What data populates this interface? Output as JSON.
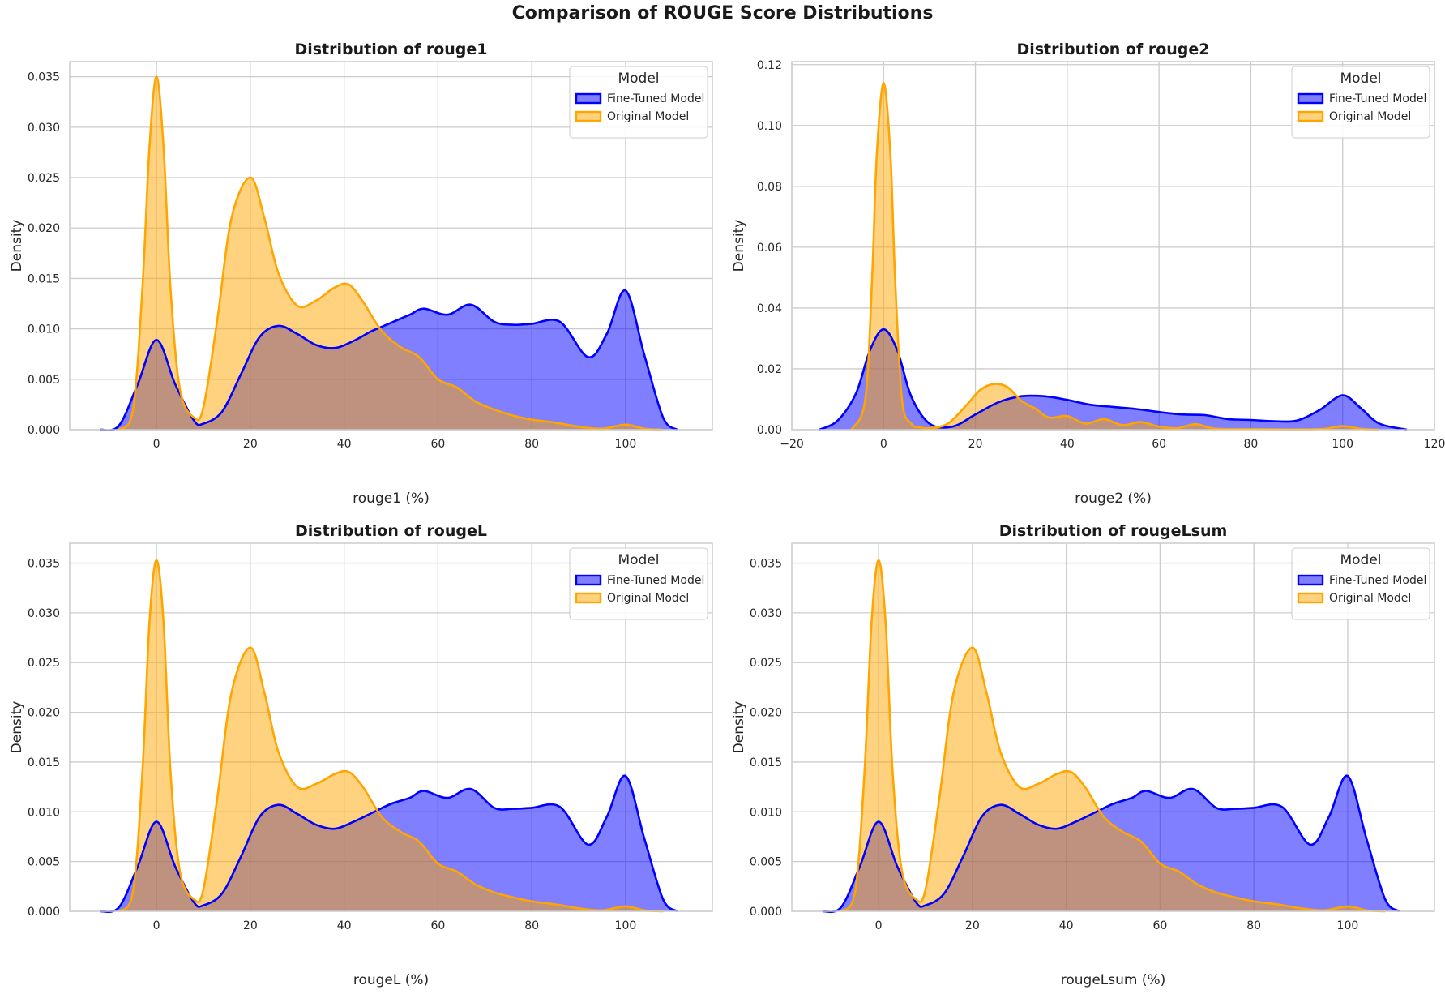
{
  "figure": {
    "title": "Comparison of ROUGE Score Distributions"
  },
  "colors": {
    "fine_tuned": "#0000ff",
    "original": "#ffa500",
    "overlap": "#bd938a"
  },
  "legend": {
    "title": "Model",
    "entries": [
      "Fine-Tuned Model",
      "Original Model"
    ]
  },
  "chart_data": [
    {
      "type": "area",
      "title": "Distribution of rouge1",
      "xlabel": "rouge1 (%)",
      "ylabel": "Density",
      "xlim": [
        -18.5,
        118.5
      ],
      "ylim": [
        0,
        0.0365
      ],
      "xticks": [
        0,
        20,
        40,
        60,
        80,
        100
      ],
      "yticks": [
        0.0,
        0.005,
        0.01,
        0.015,
        0.02,
        0.025,
        0.03,
        0.035
      ],
      "ytick_labels": [
        "0.000",
        "0.005",
        "0.010",
        "0.015",
        "0.020",
        "0.025",
        "0.030",
        "0.035"
      ],
      "legend_position": "top-right",
      "grid": true,
      "series": [
        {
          "name": "Fine-Tuned Model",
          "x": [
            -12,
            -8,
            -4,
            0,
            4,
            8,
            10,
            14,
            18,
            22,
            26,
            30,
            34,
            38,
            42,
            46,
            50,
            54,
            57,
            62,
            67,
            72,
            76,
            80,
            86,
            92,
            96,
            100,
            104,
            108,
            111
          ],
          "y": [
            0,
            0.0004,
            0.0045,
            0.0089,
            0.0045,
            0.0009,
            0.0006,
            0.0018,
            0.0055,
            0.0092,
            0.0103,
            0.0095,
            0.0084,
            0.0081,
            0.0088,
            0.0098,
            0.0106,
            0.0114,
            0.012,
            0.0114,
            0.0124,
            0.0107,
            0.0104,
            0.0105,
            0.0107,
            0.0072,
            0.0095,
            0.0138,
            0.0074,
            0.0012,
            0
          ]
        },
        {
          "name": "Original Model",
          "x": [
            -8,
            -5,
            -3,
            -1.5,
            0,
            1.5,
            3,
            5,
            8,
            10,
            13,
            16,
            20,
            23,
            26,
            30,
            34,
            38,
            41,
            44,
            48,
            52,
            56,
            60,
            64,
            68,
            72,
            76,
            80,
            85,
            90,
            95,
            100,
            104,
            108
          ],
          "y": [
            0,
            0.002,
            0.014,
            0.028,
            0.035,
            0.028,
            0.014,
            0.004,
            0.0012,
            0.0022,
            0.011,
            0.021,
            0.025,
            0.021,
            0.0155,
            0.0123,
            0.0128,
            0.0141,
            0.0144,
            0.0127,
            0.0098,
            0.0082,
            0.0072,
            0.005,
            0.0042,
            0.0028,
            0.002,
            0.0014,
            0.001,
            0.0007,
            0.0003,
            0.0001,
            0.0005,
            0.0001,
            0
          ]
        }
      ]
    },
    {
      "type": "area",
      "title": "Distribution of rouge2",
      "xlabel": "rouge2 (%)",
      "ylabel": "Density",
      "xlim": [
        -20,
        120
      ],
      "ylim": [
        0,
        0.121
      ],
      "xticks": [
        -20,
        0,
        20,
        40,
        60,
        80,
        100,
        120
      ],
      "xtick_labels": [
        "−20",
        "0",
        "20",
        "40",
        "60",
        "80",
        "100",
        "120"
      ],
      "yticks": [
        0.0,
        0.02,
        0.04,
        0.06,
        0.08,
        0.1,
        0.12
      ],
      "ytick_labels": [
        "0.00",
        "0.02",
        "0.04",
        "0.06",
        "0.08",
        "0.10",
        "0.12"
      ],
      "legend_position": "top-right",
      "grid": true,
      "series": [
        {
          "name": "Fine-Tuned Model",
          "x": [
            -14,
            -10,
            -6,
            -3,
            0,
            3,
            6,
            10,
            15,
            20,
            25,
            30,
            35,
            40,
            45,
            50,
            55,
            60,
            65,
            70,
            75,
            80,
            85,
            90,
            95,
            100,
            104,
            108,
            114
          ],
          "y": [
            0,
            0.003,
            0.012,
            0.026,
            0.033,
            0.026,
            0.011,
            0.002,
            0.001,
            0.005,
            0.009,
            0.011,
            0.011,
            0.0098,
            0.0082,
            0.0075,
            0.0068,
            0.0058,
            0.005,
            0.0048,
            0.0035,
            0.0032,
            0.0028,
            0.003,
            0.0065,
            0.0113,
            0.007,
            0.002,
            0
          ]
        },
        {
          "name": "Original Model",
          "x": [
            -7,
            -4,
            -2.5,
            -1.5,
            0,
            1.5,
            2.5,
            4,
            6,
            8,
            10,
            14,
            18,
            21,
            24,
            27,
            30,
            33,
            36,
            40,
            44,
            48,
            52,
            56,
            60,
            64,
            68,
            72,
            80,
            90,
            96,
            100,
            104,
            108
          ],
          "y": [
            0,
            0.01,
            0.05,
            0.09,
            0.114,
            0.09,
            0.05,
            0.01,
            0.002,
            0.0008,
            0.0005,
            0.002,
            0.008,
            0.013,
            0.015,
            0.014,
            0.0095,
            0.007,
            0.004,
            0.0045,
            0.002,
            0.0035,
            0.0015,
            0.0025,
            0.001,
            0.0005,
            0.0018,
            0.0004,
            0.0002,
            0.0001,
            0.0003,
            0.0012,
            0.0003,
            0
          ]
        }
      ]
    },
    {
      "type": "area",
      "title": "Distribution of rougeL",
      "xlabel": "rougeL (%)",
      "ylabel": "Density",
      "xlim": [
        -18.5,
        118.5
      ],
      "ylim": [
        0,
        0.037
      ],
      "xticks": [
        0,
        20,
        40,
        60,
        80,
        100
      ],
      "yticks": [
        0.0,
        0.005,
        0.01,
        0.015,
        0.02,
        0.025,
        0.03,
        0.035
      ],
      "ytick_labels": [
        "0.000",
        "0.005",
        "0.010",
        "0.015",
        "0.020",
        "0.025",
        "0.030",
        "0.035"
      ],
      "legend_position": "top-right",
      "grid": true,
      "series": [
        {
          "name": "Fine-Tuned Model",
          "x": [
            -12,
            -8,
            -4,
            0,
            4,
            8,
            10,
            14,
            18,
            22,
            26,
            30,
            34,
            38,
            42,
            46,
            50,
            54,
            57,
            62,
            67,
            72,
            76,
            80,
            86,
            92,
            96,
            100,
            104,
            108,
            111
          ],
          "y": [
            0,
            0.0004,
            0.0045,
            0.009,
            0.0045,
            0.0009,
            0.0006,
            0.0018,
            0.0055,
            0.0095,
            0.0107,
            0.0098,
            0.0087,
            0.0083,
            0.009,
            0.0099,
            0.0108,
            0.0114,
            0.0121,
            0.0114,
            0.0123,
            0.0104,
            0.0103,
            0.0104,
            0.0105,
            0.0067,
            0.0095,
            0.0136,
            0.0073,
            0.0012,
            0
          ]
        },
        {
          "name": "Original Model",
          "x": [
            -8,
            -5,
            -3,
            -1.5,
            0,
            1.5,
            3,
            5,
            8,
            10,
            13,
            16,
            20,
            23,
            26,
            30,
            34,
            38,
            41,
            44,
            48,
            52,
            56,
            60,
            64,
            68,
            72,
            76,
            80,
            85,
            90,
            95,
            100,
            104,
            108
          ],
          "y": [
            0,
            0.002,
            0.014,
            0.029,
            0.0353,
            0.029,
            0.014,
            0.004,
            0.0012,
            0.0022,
            0.0115,
            0.022,
            0.0265,
            0.022,
            0.016,
            0.0125,
            0.0128,
            0.0138,
            0.014,
            0.0125,
            0.0095,
            0.008,
            0.007,
            0.0048,
            0.004,
            0.0027,
            0.0019,
            0.0014,
            0.001,
            0.0007,
            0.0003,
            0.0001,
            0.0005,
            0.0001,
            0
          ]
        }
      ]
    },
    {
      "type": "area",
      "title": "Distribution of rougeLsum",
      "xlabel": "rougeLsum (%)",
      "ylabel": "Density",
      "xlim": [
        -18.5,
        118.5
      ],
      "ylim": [
        0,
        0.037
      ],
      "xticks": [
        0,
        20,
        40,
        60,
        80,
        100
      ],
      "yticks": [
        0.0,
        0.005,
        0.01,
        0.015,
        0.02,
        0.025,
        0.03,
        0.035
      ],
      "ytick_labels": [
        "0.000",
        "0.005",
        "0.010",
        "0.015",
        "0.020",
        "0.025",
        "0.030",
        "0.035"
      ],
      "legend_position": "top-right",
      "grid": true,
      "series": [
        {
          "name": "Fine-Tuned Model",
          "x": [
            -12,
            -8,
            -4,
            0,
            4,
            8,
            10,
            14,
            18,
            22,
            26,
            30,
            34,
            38,
            42,
            46,
            50,
            54,
            57,
            62,
            67,
            72,
            76,
            80,
            86,
            92,
            96,
            100,
            104,
            108,
            111
          ],
          "y": [
            0,
            0.0004,
            0.0045,
            0.009,
            0.0045,
            0.0009,
            0.0006,
            0.0018,
            0.0055,
            0.0095,
            0.0107,
            0.0098,
            0.0087,
            0.0083,
            0.009,
            0.0099,
            0.0108,
            0.0114,
            0.0121,
            0.0114,
            0.0123,
            0.0104,
            0.0103,
            0.0104,
            0.0105,
            0.0067,
            0.0095,
            0.0136,
            0.0073,
            0.0012,
            0
          ]
        },
        {
          "name": "Original Model",
          "x": [
            -8,
            -5,
            -3,
            -1.5,
            0,
            1.5,
            3,
            5,
            8,
            10,
            13,
            16,
            20,
            23,
            26,
            30,
            34,
            38,
            41,
            44,
            48,
            52,
            56,
            60,
            64,
            68,
            72,
            76,
            80,
            85,
            90,
            95,
            100,
            104,
            108
          ],
          "y": [
            0,
            0.002,
            0.014,
            0.029,
            0.0353,
            0.029,
            0.014,
            0.004,
            0.0012,
            0.0022,
            0.0115,
            0.022,
            0.0265,
            0.022,
            0.016,
            0.0125,
            0.0128,
            0.0138,
            0.014,
            0.0125,
            0.0095,
            0.008,
            0.007,
            0.0048,
            0.004,
            0.0027,
            0.0019,
            0.0014,
            0.001,
            0.0007,
            0.0003,
            0.0001,
            0.0005,
            0.0001,
            0
          ]
        }
      ]
    }
  ]
}
